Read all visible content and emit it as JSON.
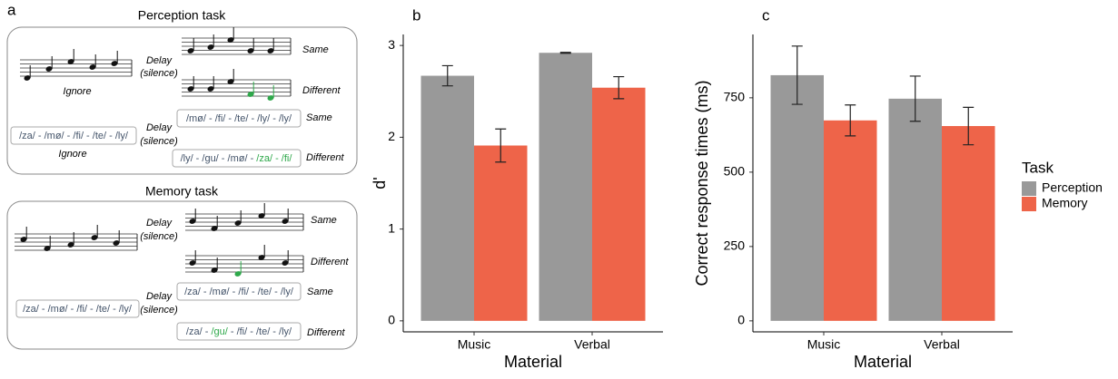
{
  "panel_a": {
    "label": "a",
    "perception": {
      "title": "Perception task",
      "music": {
        "delay": [
          "Delay",
          "(silence)"
        ],
        "ignore": "Ignore",
        "same": "Same",
        "different": "Different"
      },
      "verbal": {
        "sequence": [
          {
            "text": "/za/ - /mø/ - /fi/ - /te/ - /ly/",
            "highlight": false
          }
        ],
        "delay": [
          "Delay",
          "(silence)"
        ],
        "ignore": "Ignore",
        "same_sequence": [
          {
            "text": "/mø/ - /fi/ - /te/ - /ly/ - /ly/",
            "highlight": false
          }
        ],
        "same": "Same",
        "different_sequence": [
          {
            "text": "/ly/ - /gu/ - /mø/ - ",
            "highlight": false
          },
          {
            "text": "/za/ - /fi/",
            "highlight": true
          }
        ],
        "different": "Different"
      }
    },
    "memory": {
      "title": "Memory task",
      "music": {
        "delay": [
          "Delay",
          "(silence)"
        ],
        "same": "Same",
        "different": "Different"
      },
      "verbal": {
        "sequence": [
          {
            "text": "/za/ - /mø/ - /fi/ - /te/ - /ly/",
            "highlight": false
          }
        ],
        "delay": [
          "Delay",
          "(silence)"
        ],
        "same_sequence": [
          {
            "text": "/za/ - /mø/ - /fi/ - /te/ - /ly/",
            "highlight": false
          }
        ],
        "same": "Same",
        "different_sequence": [
          {
            "text": "/za/ - ",
            "highlight": false
          },
          {
            "text": "/gu/",
            "highlight": true
          },
          {
            "text": " - /fi/ - /te/ - /ly/",
            "highlight": false
          }
        ],
        "different": "Different"
      }
    }
  },
  "chart_data": [
    {
      "type": "bar",
      "label": "b",
      "x_label": "Material",
      "y_label": "d'",
      "categories": [
        "Music",
        "Verbal"
      ],
      "series": [
        {
          "color": "#999999",
          "values": [
            2.67,
            2.92
          ],
          "errors": [
            0.11,
            0.005
          ]
        },
        {
          "color": "#ee6449",
          "values": [
            1.91,
            2.54
          ],
          "errors": [
            0.18,
            0.12
          ]
        }
      ],
      "ylim": [
        -0.12,
        3.12
      ],
      "yticks": [
        0,
        1,
        2,
        3
      ]
    },
    {
      "type": "bar",
      "label": "c",
      "x_label": "Material",
      "y_label": "Correct response times (ms)",
      "categories": [
        "Music",
        "Verbal"
      ],
      "series": [
        {
          "name": "Perception",
          "color": "#999999",
          "values": [
            826,
            747
          ],
          "errors": [
            98,
            76
          ]
        },
        {
          "name": "Memory",
          "color": "#ee6449",
          "values": [
            674,
            655
          ],
          "errors": [
            52,
            63
          ]
        }
      ],
      "ylim": [
        -37,
        963
      ],
      "yticks": [
        0,
        250,
        500,
        750
      ],
      "legend_title": "Task"
    }
  ]
}
